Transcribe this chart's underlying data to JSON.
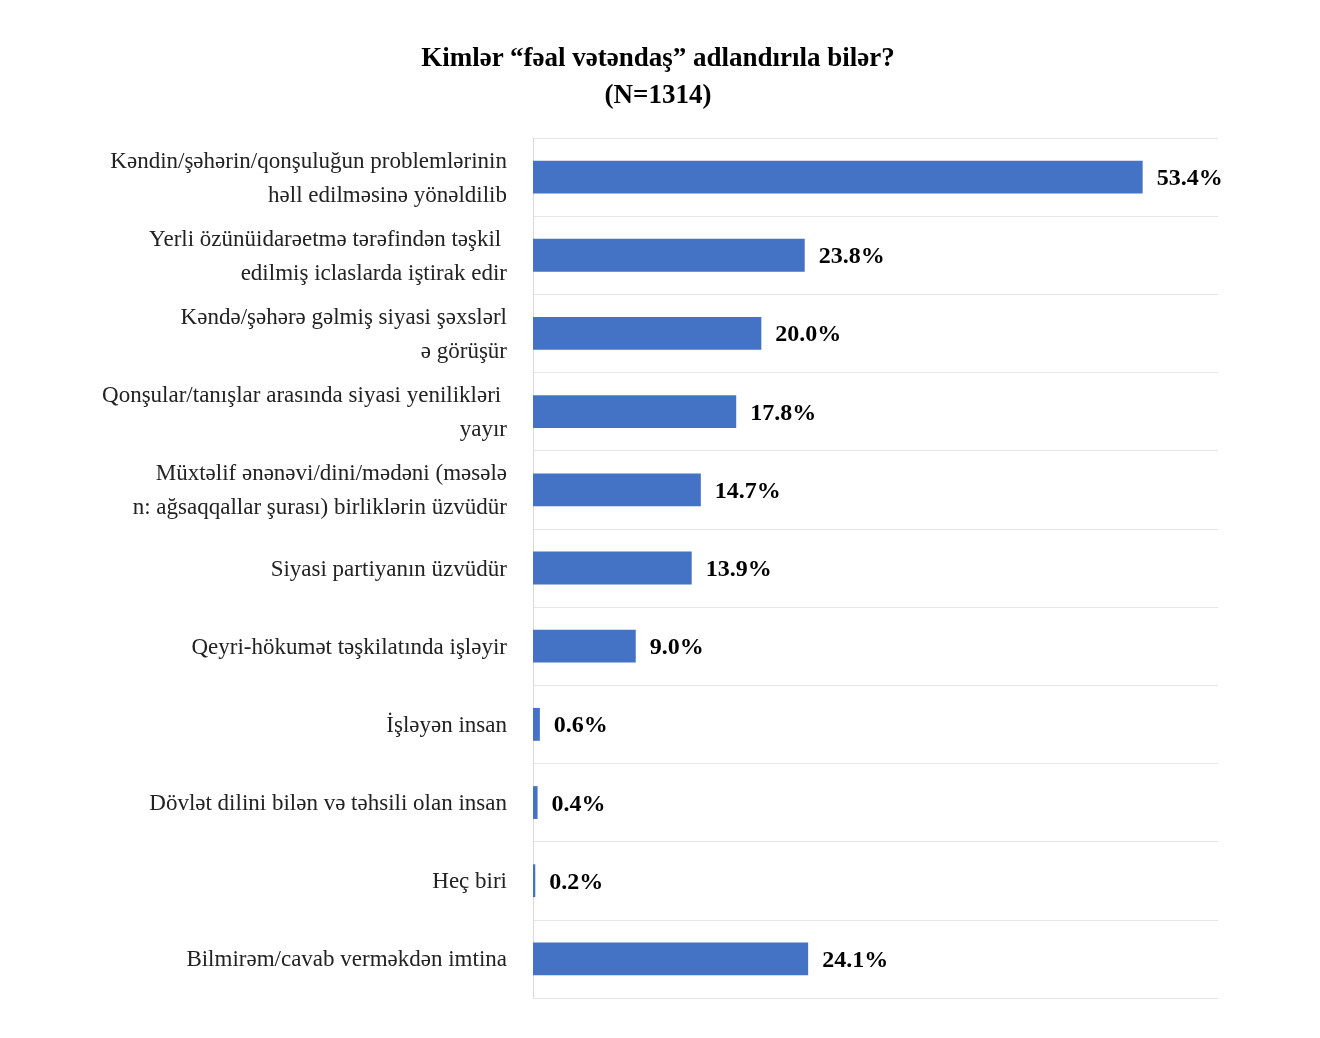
{
  "chart_data": {
    "type": "bar",
    "orientation": "horizontal",
    "title": "Kimlər “fəal vətəndaş” adlandırıla bilər?",
    "subtitle": "(N=1314)",
    "categories": [
      "Kəndin/şəhərin/qonşuluğun problemlərinin həll edilməsinə yönəldilib",
      "Yerli özünüidarəetmə tərəfindən təşkil edilmiş iclaslarda iştirak edir",
      "Kəndə/şəhərə gəlmiş siyasi şəxslərlə görüşür",
      "Qonşular/tanışlar arasında siyasi yenilikləri yayır",
      "Müxtəlif ənənəvi/dini/mədəni (məsələn: ağsaqqallar şurası) birliklərin üzvüdür",
      "Siyasi partiyanın üzvüdür",
      "Qeyri-hökumət təşkilatında işləyir",
      "İşləyən insan",
      "Dövlət dilini bilən və təhsili olan insan",
      "Heç biri",
      "Bilmirəm/cavab verməkdən imtina"
    ],
    "values": [
      53.4,
      23.8,
      20.0,
      17.8,
      14.7,
      13.9,
      9.0,
      0.6,
      0.4,
      0.2,
      24.1
    ],
    "value_labels": [
      "53.4%",
      "23.8%",
      "20.0%",
      "17.8%",
      "14.7%",
      "13.9%",
      "9.0%",
      "0.6%",
      "0.4%",
      "0.2%",
      "24.1%"
    ],
    "color": "#4472c4",
    "grid": "y"
  }
}
